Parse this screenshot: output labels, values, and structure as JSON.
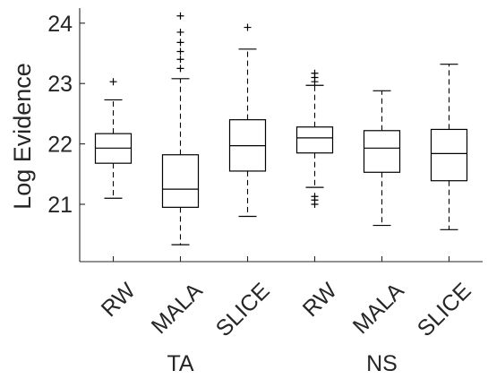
{
  "chart_data": {
    "type": "box",
    "ylabel": "Log Evidence",
    "ylim": [
      20.05,
      24.25
    ],
    "yticks": [
      21,
      22,
      23,
      24
    ],
    "groups": [
      {
        "label": "TA",
        "members": [
          "RW",
          "MALA",
          "SLICE"
        ]
      },
      {
        "label": "NS",
        "members": [
          "RW",
          "MALA",
          "SLICE"
        ]
      }
    ],
    "boxes": [
      {
        "category": "RW",
        "group": "TA",
        "whisker_low": 21.1,
        "q1": 21.68,
        "median": 21.93,
        "q3": 22.17,
        "whisker_high": 22.73,
        "outliers": [
          23.03
        ]
      },
      {
        "category": "MALA",
        "group": "TA",
        "whisker_low": 20.33,
        "q1": 20.95,
        "median": 21.25,
        "q3": 21.82,
        "whisker_high": 23.08,
        "outliers": [
          23.25,
          23.4,
          23.53,
          23.68,
          23.85,
          24.12
        ]
      },
      {
        "category": "SLICE",
        "group": "TA",
        "whisker_low": 20.8,
        "q1": 21.55,
        "median": 21.97,
        "q3": 22.4,
        "whisker_high": 23.57,
        "outliers": [
          23.93
        ]
      },
      {
        "category": "RW",
        "group": "NS",
        "whisker_low": 21.28,
        "q1": 21.85,
        "median": 22.1,
        "q3": 22.28,
        "whisker_high": 22.97,
        "outliers": [
          21.0,
          21.07,
          21.13,
          23.03,
          23.1,
          23.17
        ]
      },
      {
        "category": "MALA",
        "group": "NS",
        "whisker_low": 20.65,
        "q1": 21.53,
        "median": 21.93,
        "q3": 22.22,
        "whisker_high": 22.88,
        "outliers": []
      },
      {
        "category": "SLICE",
        "group": "NS",
        "whisker_low": 20.58,
        "q1": 21.39,
        "median": 21.84,
        "q3": 22.24,
        "whisker_high": 23.32,
        "outliers": []
      }
    ],
    "grid": false,
    "legend": false
  }
}
